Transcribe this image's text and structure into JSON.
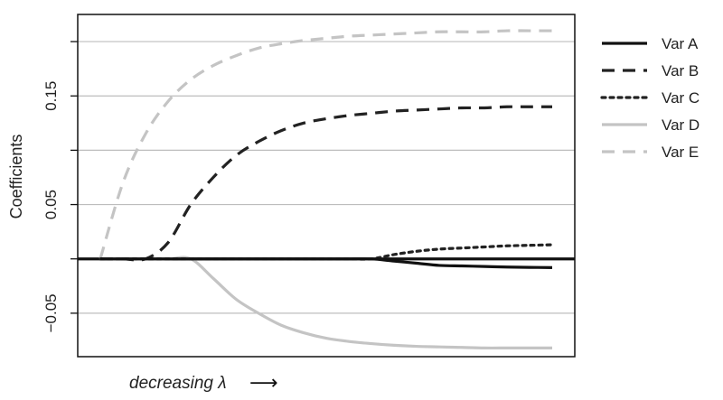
{
  "chart_data": {
    "type": "line",
    "title": "",
    "xlabel": "decreasing λ",
    "xlabel_arrow": "⟶",
    "ylabel": "Coefficients",
    "x_tick_labels": false,
    "ylim": [
      -0.09,
      0.225
    ],
    "yticks_labeled": [
      -0.05,
      0.05,
      0.15
    ],
    "yticks_labels": [
      "−0.05",
      "0.05",
      "0.15"
    ],
    "gridlines_y": [
      -0.05,
      0.0,
      0.05,
      0.1,
      0.15,
      0.2
    ],
    "grid": "horizontal",
    "legend_position": "right",
    "x": [
      0.0,
      0.05,
      0.1,
      0.15,
      0.2,
      0.25,
      0.3,
      0.35,
      0.4,
      0.45,
      0.5,
      0.55,
      0.6,
      0.65,
      0.7,
      0.75,
      0.8,
      0.85,
      0.9,
      0.95,
      1.0
    ],
    "xlim": [
      -0.05,
      1.05
    ],
    "series": [
      {
        "name": "Var A",
        "color": "#111111",
        "dash": "solid",
        "values": [
          0,
          0,
          0,
          0,
          0,
          0,
          0,
          0,
          0,
          0,
          0,
          0,
          0,
          -0.002,
          -0.004,
          -0.006,
          -0.0065,
          -0.007,
          -0.0075,
          -0.0078,
          -0.008
        ]
      },
      {
        "name": "Var B",
        "color": "#222222",
        "dash": "long-dash",
        "values": [
          0,
          0,
          0,
          0.015,
          0.05,
          0.075,
          0.095,
          0.108,
          0.118,
          0.125,
          0.129,
          0.132,
          0.134,
          0.136,
          0.137,
          0.138,
          0.139,
          0.139,
          0.14,
          0.14,
          0.14
        ]
      },
      {
        "name": "Var C",
        "color": "#222222",
        "dash": "dotted",
        "values": [
          0,
          0,
          0,
          0,
          0,
          0,
          0,
          0,
          0,
          0,
          0,
          0,
          0,
          0.004,
          0.007,
          0.009,
          0.01,
          0.011,
          0.012,
          0.0125,
          0.013
        ]
      },
      {
        "name": "Var D",
        "color": "#c4c4c4",
        "dash": "solid",
        "values": [
          0,
          0,
          0,
          0,
          0,
          -0.018,
          -0.037,
          -0.05,
          -0.061,
          -0.068,
          -0.073,
          -0.076,
          -0.078,
          -0.0795,
          -0.0805,
          -0.081,
          -0.0815,
          -0.082,
          -0.082,
          -0.082,
          -0.082
        ]
      },
      {
        "name": "Var E",
        "color": "#c4c4c4",
        "dash": "long-dash",
        "values": [
          0,
          0.07,
          0.115,
          0.145,
          0.165,
          0.178,
          0.187,
          0.194,
          0.198,
          0.201,
          0.203,
          0.205,
          0.206,
          0.207,
          0.208,
          0.209,
          0.209,
          0.209,
          0.21,
          0.21,
          0.21
        ]
      }
    ],
    "zero_line": {
      "value": 0,
      "color": "#111111"
    }
  }
}
